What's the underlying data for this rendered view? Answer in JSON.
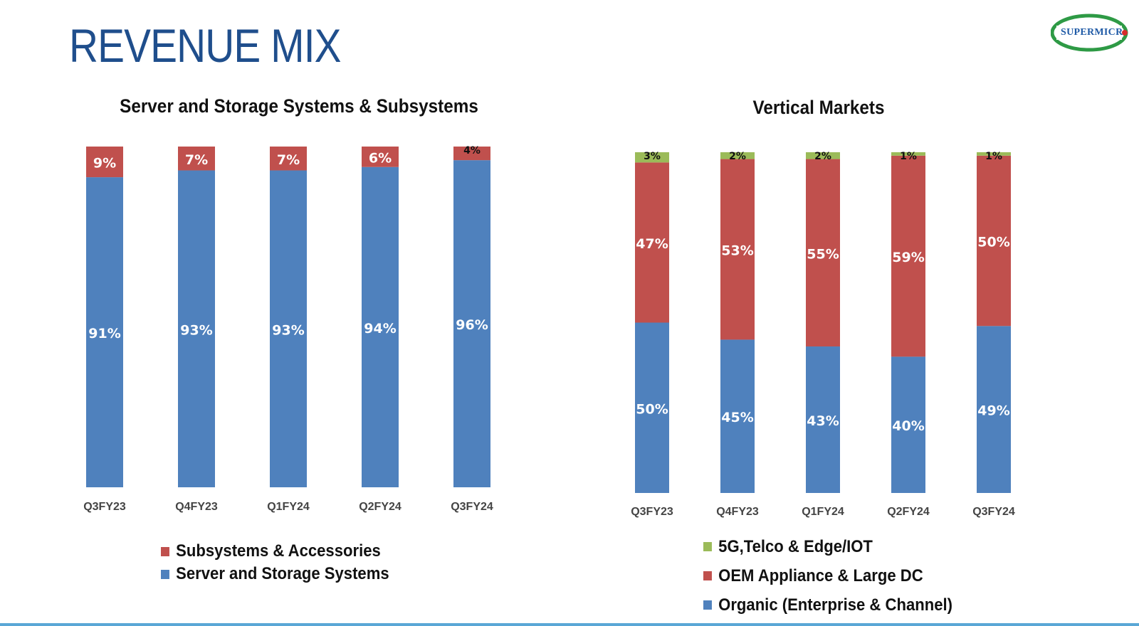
{
  "title": "REVENUE MIX",
  "logo": {
    "text": "SUPERMICR",
    "icon": "supermicro-logo"
  },
  "colors": {
    "blue": "#4f81bd",
    "red": "#c0504d",
    "green": "#9bbb59",
    "title": "#1f4e8c"
  },
  "chart_data": [
    {
      "type": "bar",
      "stacked": true,
      "title": "Server and Storage Systems & Subsystems",
      "categories": [
        "Q3FY23",
        "Q4FY23",
        "Q1FY24",
        "Q2FY24",
        "Q3FY24"
      ],
      "ylim": [
        0,
        100
      ],
      "series": [
        {
          "name": "Server and Storage Systems",
          "values": [
            91,
            93,
            93,
            94,
            96
          ],
          "labels": [
            "91%",
            "93%",
            "93%",
            "94%",
            "96%"
          ],
          "color": "#4f81bd"
        },
        {
          "name": "Subsystems & Accessories",
          "values": [
            9,
            7,
            7,
            6,
            4
          ],
          "labels": [
            "9%",
            "7%",
            "7%",
            "6%",
            "4%"
          ],
          "color": "#c0504d"
        }
      ],
      "legend": [
        "Subsystems & Accessories",
        "Server and Storage Systems"
      ],
      "legend_position": "bottom"
    },
    {
      "type": "bar",
      "stacked": true,
      "title": "Vertical Markets",
      "categories": [
        "Q3FY23",
        "Q4FY23",
        "Q1FY24",
        "Q2FY24",
        "Q3FY24"
      ],
      "ylim": [
        0,
        100
      ],
      "series": [
        {
          "name": "Organic (Enterprise & Channel)",
          "values": [
            50,
            45,
            43,
            40,
            49
          ],
          "labels": [
            "50%",
            "45%",
            "43%",
            "40%",
            "49%"
          ],
          "color": "#4f81bd"
        },
        {
          "name": "OEM Appliance & Large DC",
          "values": [
            47,
            53,
            55,
            59,
            50
          ],
          "labels": [
            "47%",
            "53%",
            "55%",
            "59%",
            "50%"
          ],
          "color": "#c0504d"
        },
        {
          "name": "5G,Telco & Edge/IOT",
          "values": [
            3,
            2,
            2,
            1,
            1
          ],
          "labels": [
            "3%",
            "2%",
            "2%",
            "1%",
            "1%"
          ],
          "color": "#9bbb59"
        }
      ],
      "legend": [
        "5G,Telco & Edge/IOT",
        "OEM Appliance & Large DC",
        "Organic (Enterprise & Channel)"
      ],
      "legend_position": "bottom"
    }
  ]
}
